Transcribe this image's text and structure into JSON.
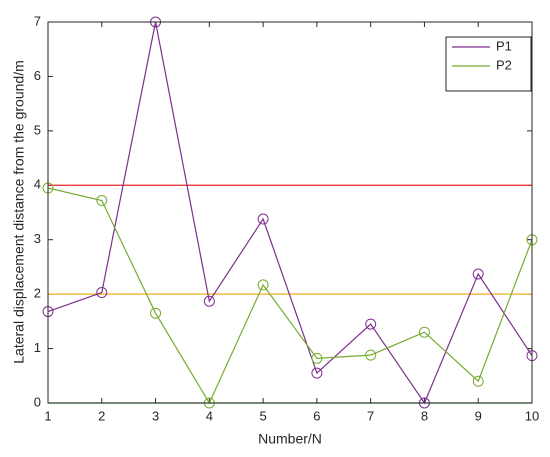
{
  "chart_data": {
    "type": "line",
    "xlabel": "Number/N",
    "ylabel": "Lateral displacement distance from the ground/m",
    "x": [
      1,
      2,
      3,
      4,
      5,
      6,
      7,
      8,
      9,
      10
    ],
    "series": [
      {
        "name": "P1",
        "color": "#7e2f8e",
        "values": [
          1.68,
          2.03,
          7.0,
          1.87,
          3.38,
          0.55,
          1.45,
          0,
          2.37,
          0.87
        ]
      },
      {
        "name": "P2",
        "color": "#77ac30",
        "values": [
          3.95,
          3.72,
          1.65,
          0,
          2.17,
          0.82,
          0.88,
          1.3,
          0.4,
          3.0
        ]
      }
    ],
    "hlines": [
      {
        "y": 4,
        "color": "#e8262a"
      },
      {
        "y": 2,
        "color": "#edb120"
      },
      {
        "y": 0,
        "color": "#1fa81f"
      }
    ],
    "xlim": [
      1,
      10
    ],
    "xticks": [
      1,
      2,
      3,
      4,
      5,
      6,
      7,
      8,
      9,
      10
    ],
    "ylim": [
      0,
      7
    ],
    "yticks": [
      0,
      1,
      2,
      3,
      4,
      5,
      6,
      7
    ],
    "marker": "circle",
    "legend": "northeast"
  }
}
